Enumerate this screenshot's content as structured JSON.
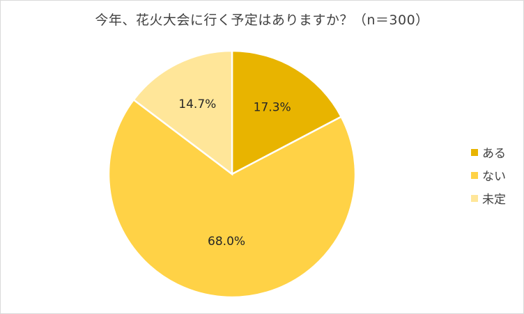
{
  "chart_data": {
    "type": "pie",
    "title": "今年、花火大会に行く予定はありますか？（n＝300）",
    "categories": [
      "ある",
      "ない",
      "未定"
    ],
    "values": [
      17.3,
      68.0,
      14.7
    ],
    "value_labels": [
      "17.3%",
      "68.0%",
      "14.7%"
    ],
    "colors": [
      "#E8B400",
      "#FFD246",
      "#FFE699"
    ],
    "start_angle": "12 o'clock",
    "direction": "clockwise",
    "legend_position": "right"
  }
}
